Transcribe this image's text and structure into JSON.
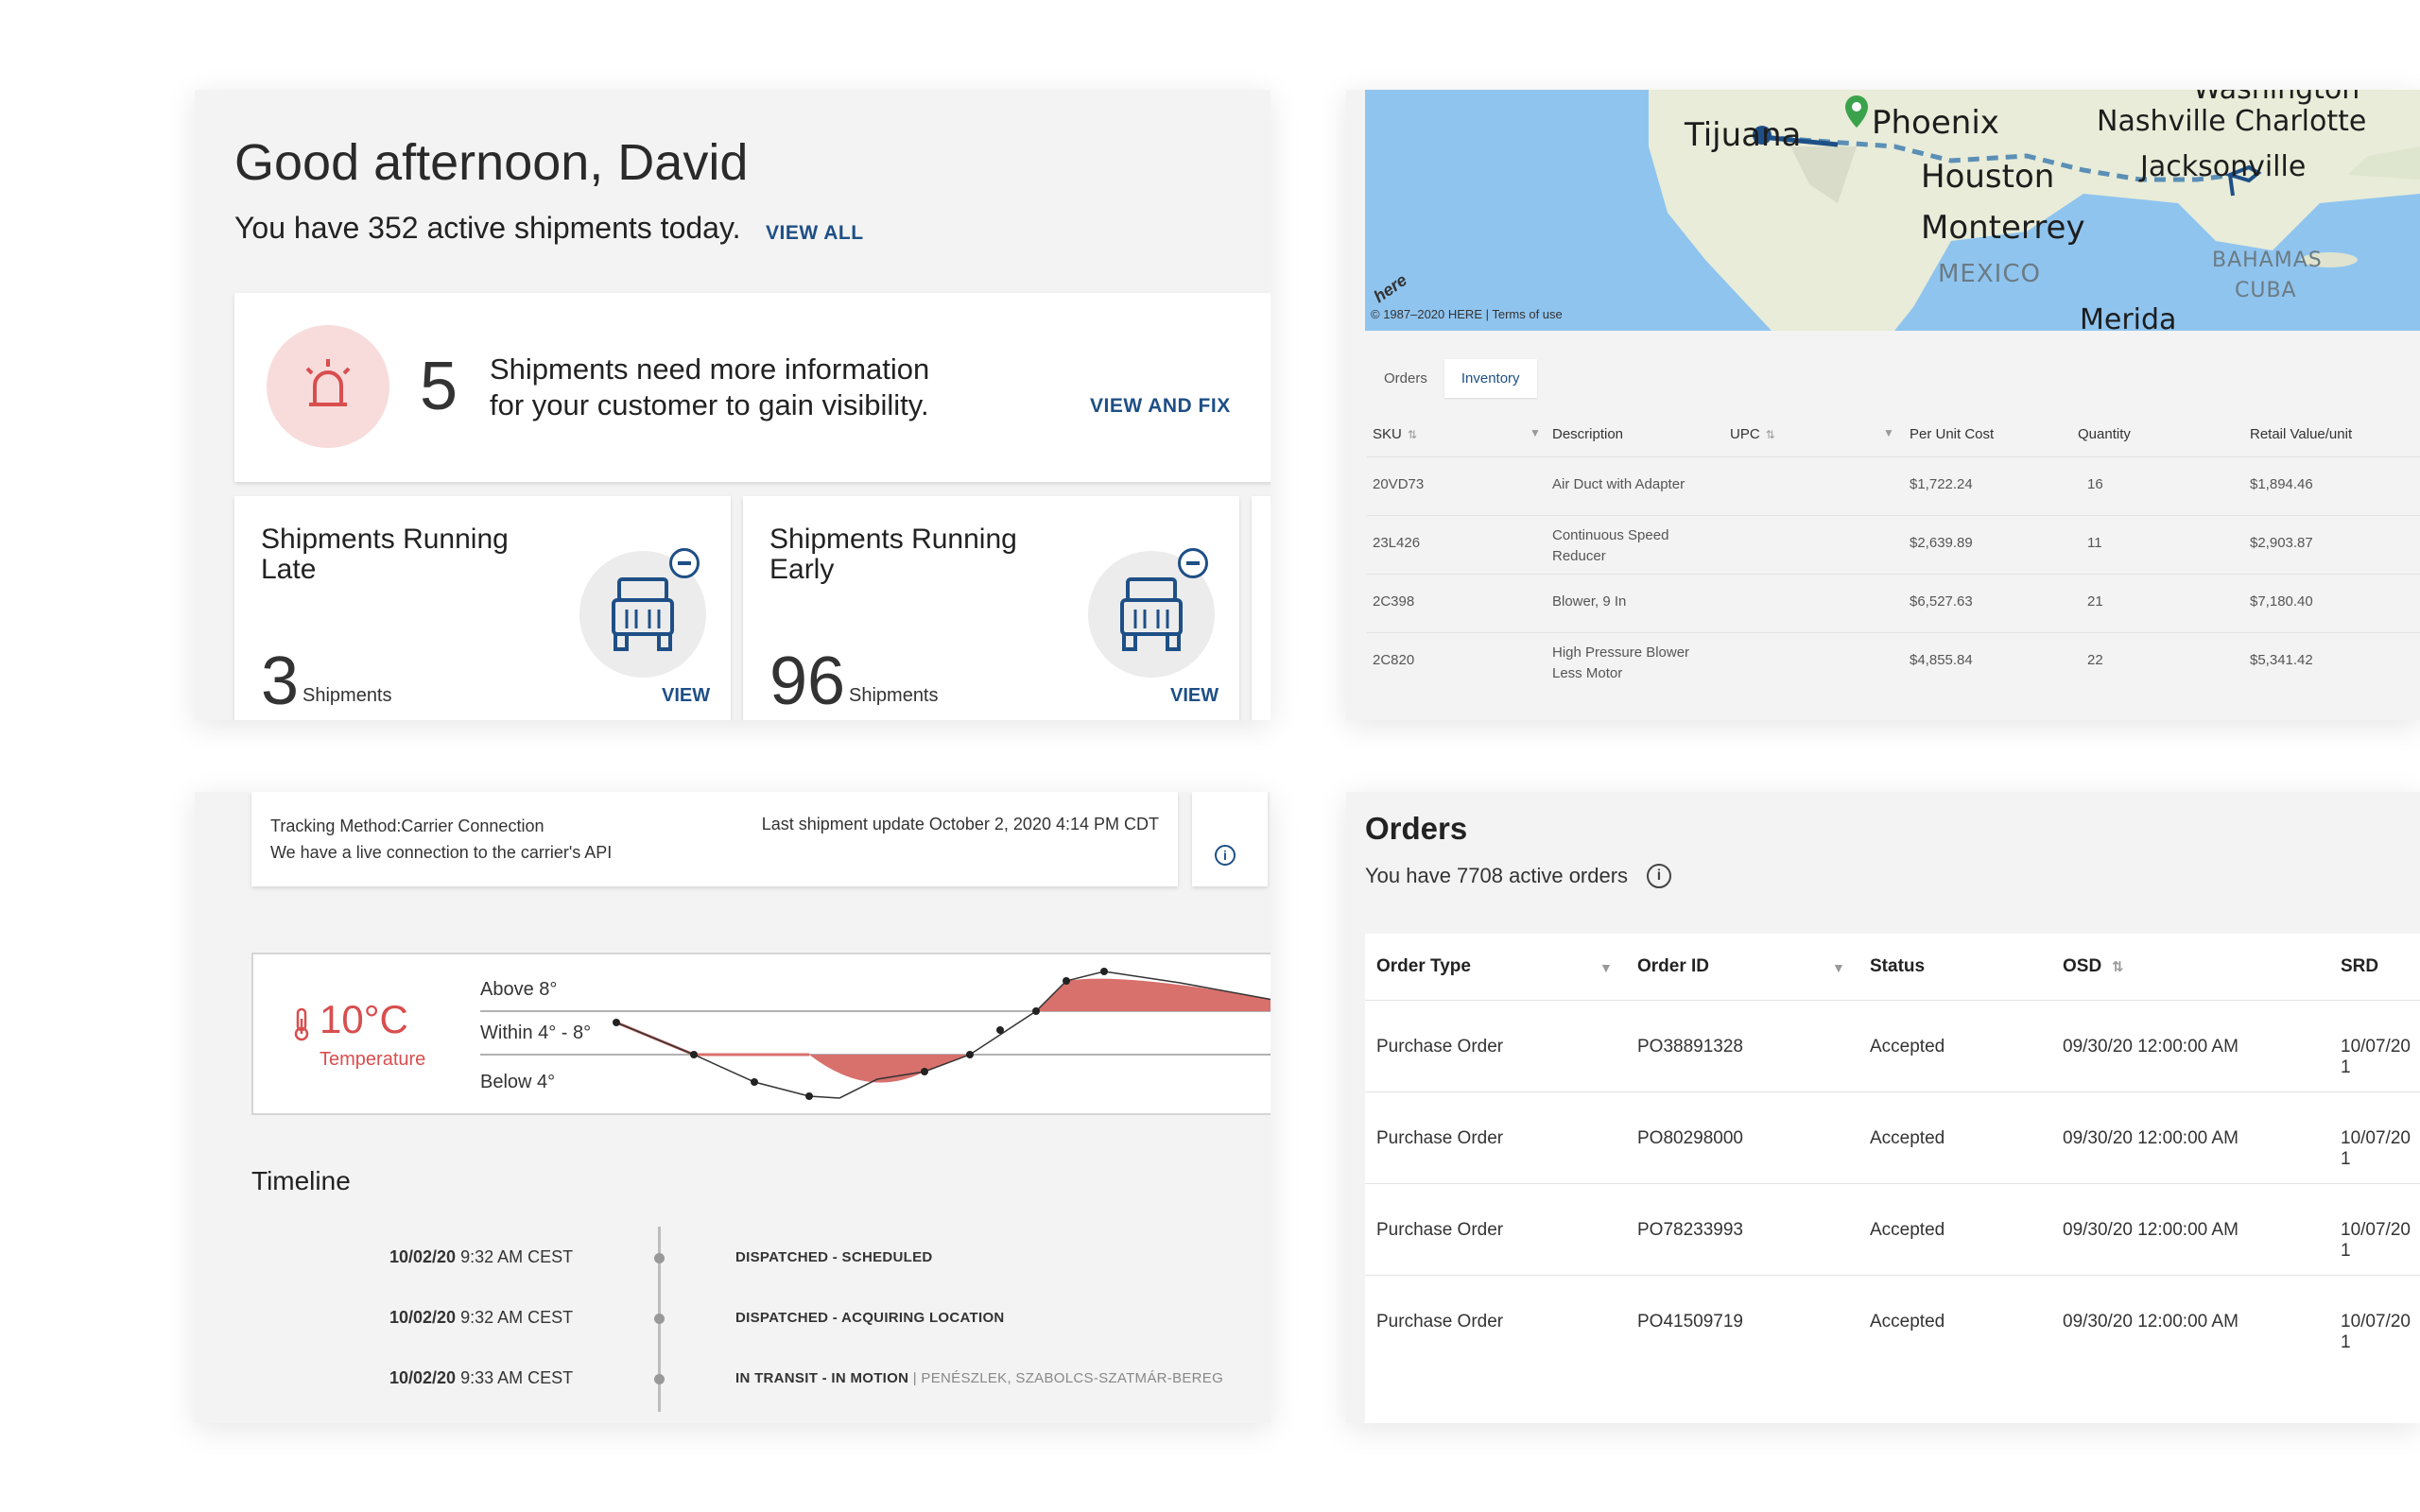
{
  "greeting": {
    "title": "Good afternoon, David",
    "subtitle": "You have 352 active shipments today.",
    "view_all": "VIEW ALL",
    "alert": {
      "count": "5",
      "text_line1": "Shipments need more information",
      "text_line2": "for your customer to gain visibility.",
      "action": "VIEW AND FIX",
      "icon": "alarm-siren-icon"
    },
    "cards": [
      {
        "title_line1": "Shipments Running",
        "title_line2": "Late",
        "count": "3",
        "unit": "Shipments",
        "action": "VIEW",
        "icon": "truck-icon"
      },
      {
        "title_line1": "Shipments Running",
        "title_line2": "Early",
        "count": "96",
        "unit": "Shipments",
        "action": "VIEW",
        "icon": "truck-icon"
      }
    ]
  },
  "map": {
    "labels": [
      "Tijuana",
      "Phoenix",
      "Nashville",
      "Charlotte",
      "Houston",
      "Jacksonville",
      "Monterrey",
      "MEXICO",
      "BAHAMAS",
      "CUBA",
      "Merida",
      "Washington"
    ],
    "copyright": "© 1987–2020 HERE | Terms of use",
    "logo": "here"
  },
  "inventory": {
    "tabs": [
      {
        "label": "Orders"
      },
      {
        "label": "Inventory",
        "active": true
      }
    ],
    "columns": [
      "SKU",
      "Description",
      "UPC",
      "Per Unit Cost",
      "Quantity",
      "Retail Value/unit"
    ],
    "rows": [
      {
        "sku": "20VD73",
        "desc": "Air Duct with Adapter",
        "desc2": "",
        "upc": "",
        "cost": "$1,722.24",
        "qty": "16",
        "retail": "$1,894.46"
      },
      {
        "sku": "23L426",
        "desc": "Continuous Speed",
        "desc2": "Reducer",
        "upc": "",
        "cost": "$2,639.89",
        "qty": "11",
        "retail": "$2,903.87"
      },
      {
        "sku": "2C398",
        "desc": "Blower, 9 In",
        "desc2": "",
        "upc": "",
        "cost": "$6,527.63",
        "qty": "21",
        "retail": "$7,180.40"
      },
      {
        "sku": "2C820",
        "desc": "High Pressure Blower",
        "desc2": "Less Motor",
        "upc": "",
        "cost": "$4,855.84",
        "qty": "22",
        "retail": "$5,341.42"
      }
    ]
  },
  "tracking": {
    "method": "Tracking Method:Carrier Connection",
    "description": "We have a live connection to the carrier's API",
    "last_update": "Last shipment update October 2, 2020 4:14 PM CDT",
    "temperature": {
      "value": "10°C",
      "label": "Temperature",
      "bands": [
        "Above 8°",
        "Within 4° - 8°",
        "Below 4°"
      ],
      "accent": "#d84e4e"
    },
    "timeline": {
      "title": "Timeline",
      "events": [
        {
          "date": "10/02/20",
          "time": "9:32 AM CEST",
          "status": "DISPATCHED - SCHEDULED",
          "location": ""
        },
        {
          "date": "10/02/20",
          "time": "9:32 AM CEST",
          "status": "DISPATCHED - ACQUIRING LOCATION",
          "location": ""
        },
        {
          "date": "10/02/20",
          "time": "9:33 AM CEST",
          "status": "IN TRANSIT - IN MOTION",
          "location": " | PENÉSZLEK, SZABOLCS-SZATMÁR-BEREG"
        }
      ]
    }
  },
  "orders": {
    "title": "Orders",
    "subtitle": "You have 7708 active orders",
    "columns": [
      "Order Type",
      "Order ID",
      "Status",
      "OSD",
      "SRD"
    ],
    "rows": [
      {
        "type": "Purchase Order",
        "id": "PO38891328",
        "status": "Accepted",
        "osd": "09/30/20 12:00:00 AM",
        "srd": "10/07/20 1"
      },
      {
        "type": "Purchase Order",
        "id": "PO80298000",
        "status": "Accepted",
        "osd": "09/30/20 12:00:00 AM",
        "srd": "10/07/20 1"
      },
      {
        "type": "Purchase Order",
        "id": "PO78233993",
        "status": "Accepted",
        "osd": "09/30/20 12:00:00 AM",
        "srd": "10/07/20 1"
      },
      {
        "type": "Purchase Order",
        "id": "PO41509719",
        "status": "Accepted",
        "osd": "09/30/20 12:00:00 AM",
        "srd": "10/07/20 1"
      }
    ]
  },
  "colors": {
    "brand_blue": "#1e4f86",
    "alert_red": "#d84e4e",
    "panel_bg": "#f3f3f3"
  }
}
